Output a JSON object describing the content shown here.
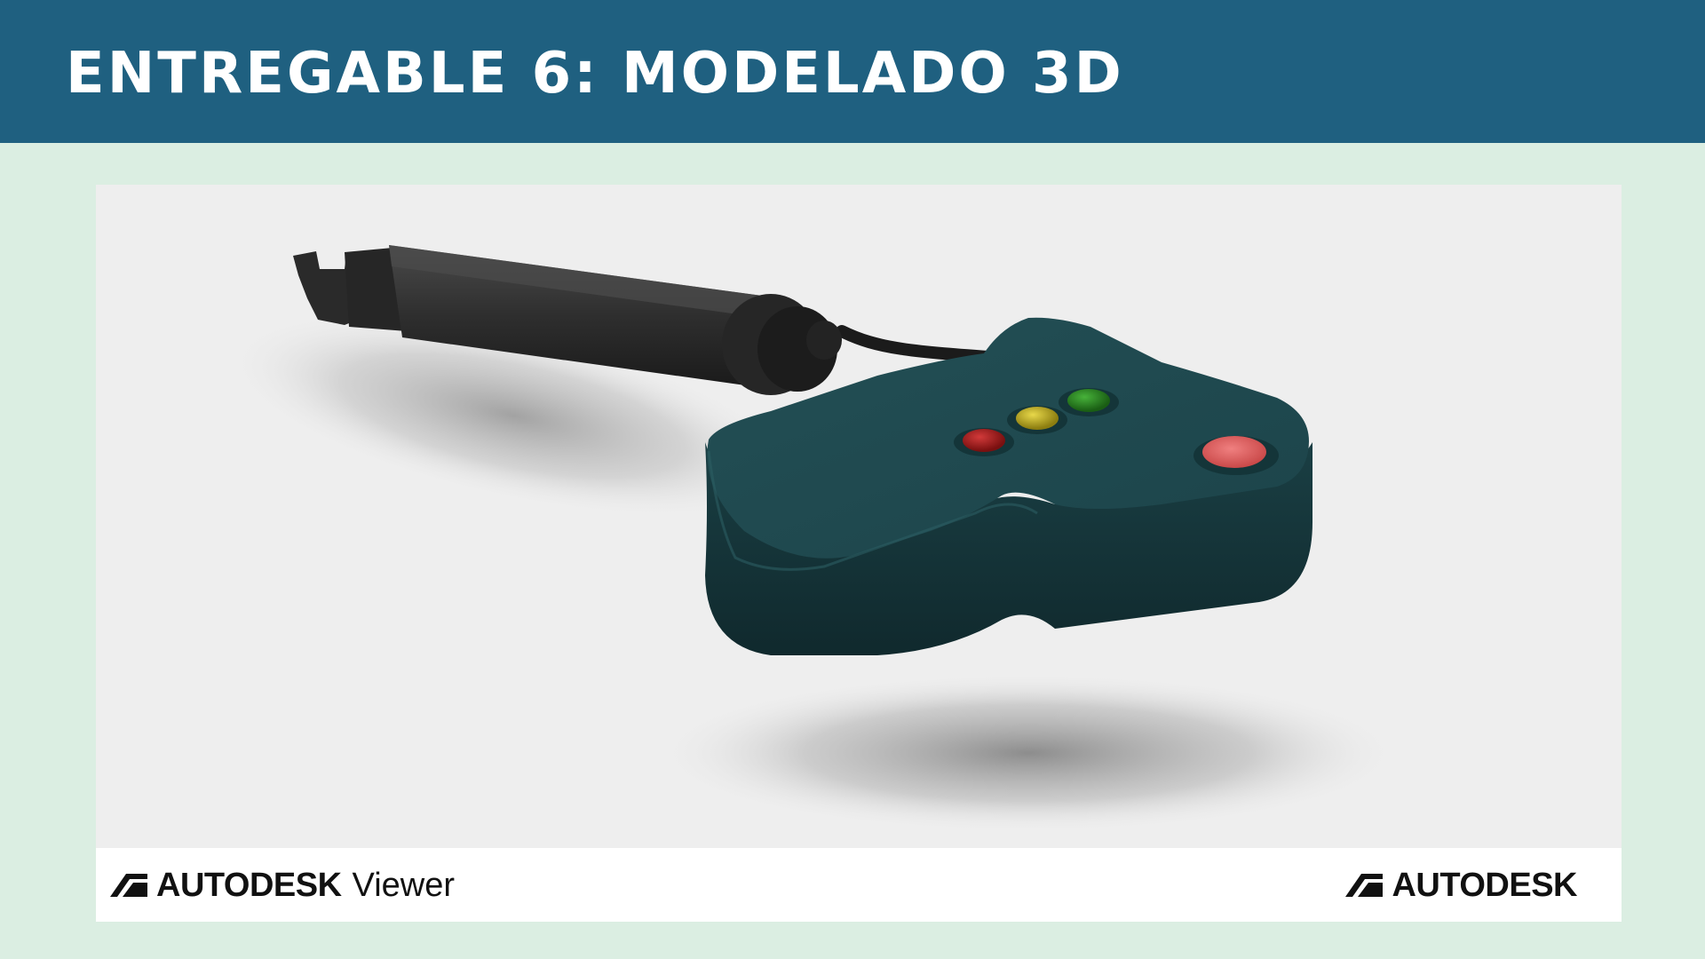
{
  "slide": {
    "title": "ENTREGABLE 6: MODELADO 3D",
    "header_color": "#1f6080",
    "background_color": "#dbeee2"
  },
  "viewer": {
    "model": {
      "icon": "3d-model-device",
      "body_color": "#1d4a4f",
      "probe_color": "#2e2e2e",
      "led_colors": [
        "#a51b1b",
        "#c8b61d",
        "#2a8a1f"
      ],
      "button_color": "#e56565"
    },
    "footer": {
      "left_brand": "AUTODESK",
      "left_product": "Viewer",
      "right_brand": "AUTODESK",
      "logo_icon": "autodesk-logo-icon"
    }
  }
}
